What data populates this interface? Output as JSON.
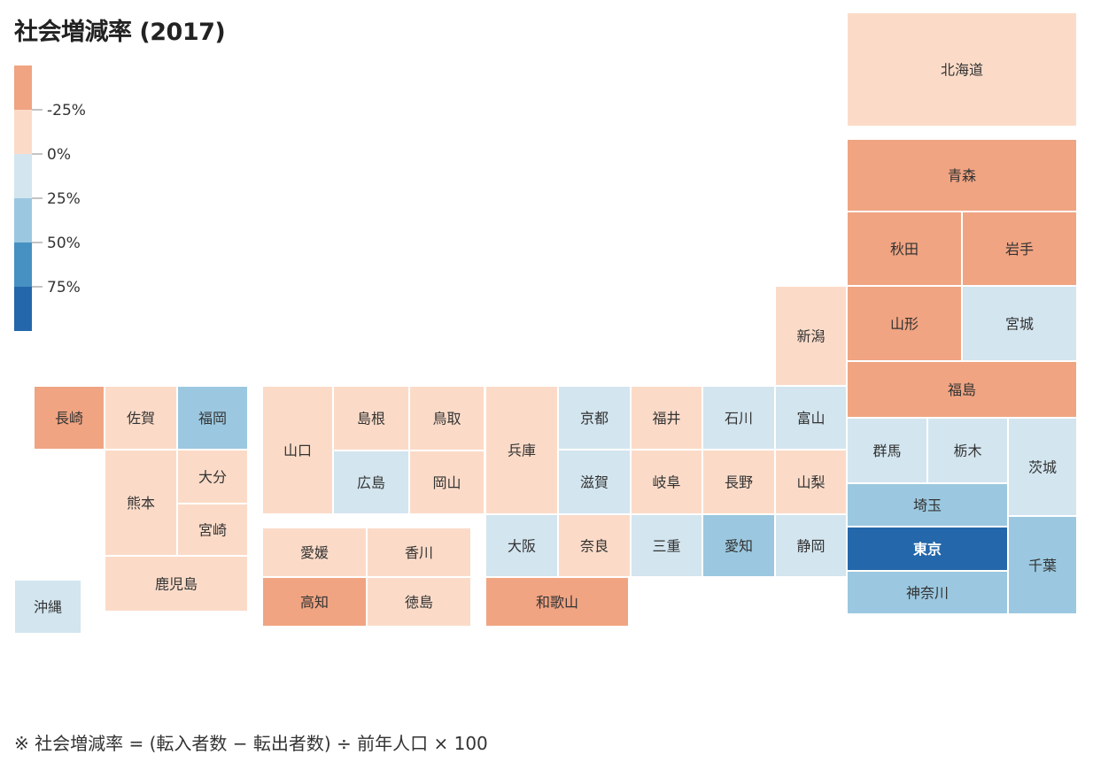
{
  "chart_data": {
    "type": "heatmap",
    "subtype": "tile-grid-map",
    "title": "社会増減率 (2017)",
    "footnote": "※ 社会増減率 = (転入者数 − 転出者数) ÷ 前年人口 × 100",
    "legend": {
      "ticks": [
        "-25%",
        "0%",
        "25%",
        "50%",
        "75%"
      ],
      "colors": [
        "#f0a482",
        "#fbdbc8",
        "#d3e5ef",
        "#9bc8e0",
        "#4690c2",
        "#2467aa"
      ]
    },
    "categories": [
      "北海道",
      "青森",
      "秋田",
      "岩手",
      "山形",
      "宮城",
      "新潟",
      "福島",
      "群馬",
      "栃木",
      "茨城",
      "富山",
      "石川",
      "福井",
      "京都",
      "兵庫",
      "島根",
      "鳥取",
      "山口",
      "長崎",
      "佐賀",
      "福岡",
      "大分",
      "宮崎",
      "熊本",
      "鹿児島",
      "沖縄",
      "広島",
      "岡山",
      "愛媛",
      "香川",
      "高知",
      "徳島",
      "大阪",
      "奈良",
      "和歌山",
      "滋賀",
      "岐阜",
      "長野",
      "山梨",
      "三重",
      "愛知",
      "静岡",
      "埼玉",
      "東京",
      "千葉",
      "神奈川"
    ],
    "values": [
      -1,
      -2,
      -2,
      -2,
      -2,
      1,
      -1,
      -2,
      1,
      1,
      1,
      1,
      1,
      -1,
      1,
      -1,
      -1,
      -1,
      -1,
      -2,
      -1,
      2,
      -1,
      -1,
      -1,
      -1,
      1,
      1,
      -1,
      -1,
      -1,
      -2,
      -1,
      1,
      -1,
      -2,
      1,
      -1,
      -1,
      -1,
      1,
      2,
      1,
      2,
      4,
      2,
      2
    ]
  }
}
